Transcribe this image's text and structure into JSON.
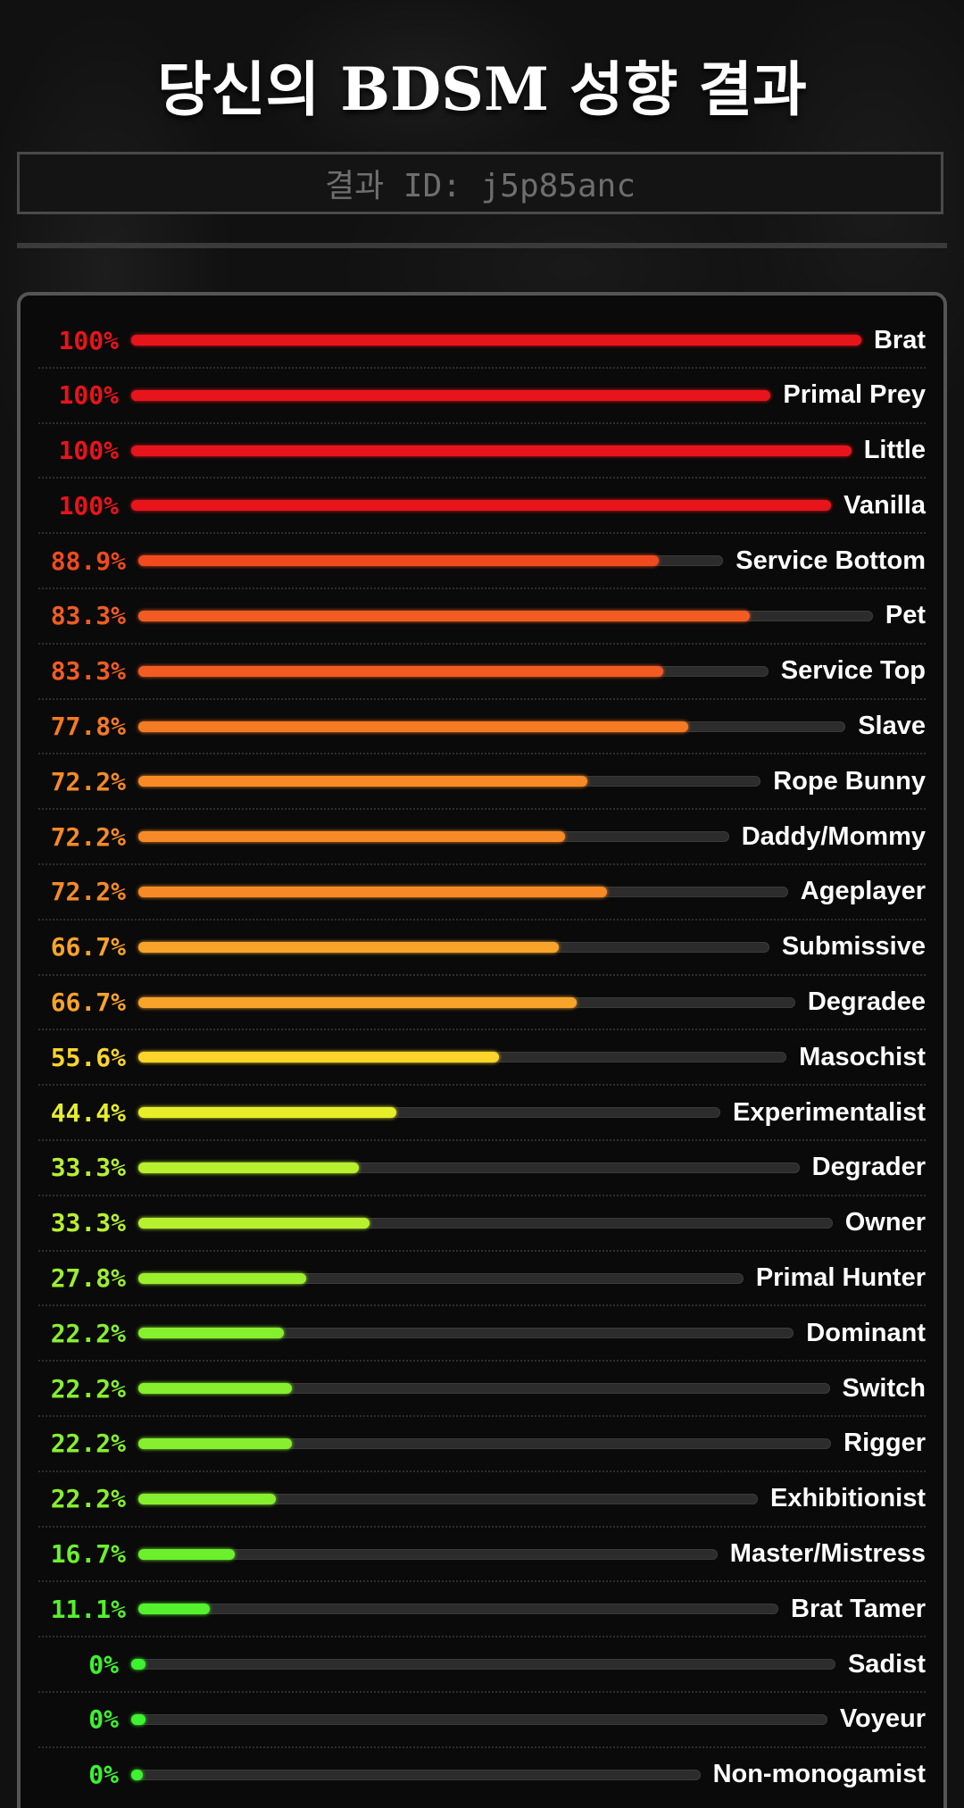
{
  "header": {
    "title": "당신의 BDSM 성향 결과",
    "result_id": "결과 ID: j5p85anc"
  },
  "results": [
    {
      "label": "Brat",
      "percent_text": "100%",
      "percent": 100,
      "color": "#e8141b"
    },
    {
      "label": "Primal Prey",
      "percent_text": "100%",
      "percent": 100,
      "color": "#e8141b"
    },
    {
      "label": "Little",
      "percent_text": "100%",
      "percent": 100,
      "color": "#e8141b"
    },
    {
      "label": "Vanilla",
      "percent_text": "100%",
      "percent": 100,
      "color": "#e8141b"
    },
    {
      "label": "Service Bottom",
      "percent_text": "88.9%",
      "percent": 88.9,
      "color": "#f04a1e"
    },
    {
      "label": "Pet",
      "percent_text": "83.3%",
      "percent": 83.3,
      "color": "#f25c22"
    },
    {
      "label": "Service Top",
      "percent_text": "83.3%",
      "percent": 83.3,
      "color": "#f25c22"
    },
    {
      "label": "Slave",
      "percent_text": "77.8%",
      "percent": 77.8,
      "color": "#f57a24"
    },
    {
      "label": "Rope Bunny",
      "percent_text": "72.2%",
      "percent": 72.2,
      "color": "#f78a26"
    },
    {
      "label": "Daddy/Mommy",
      "percent_text": "72.2%",
      "percent": 72.2,
      "color": "#f78a26"
    },
    {
      "label": "Ageplayer",
      "percent_text": "72.2%",
      "percent": 72.2,
      "color": "#f78a26"
    },
    {
      "label": "Submissive",
      "percent_text": "66.7%",
      "percent": 66.7,
      "color": "#f8a32a"
    },
    {
      "label": "Degradee",
      "percent_text": "66.7%",
      "percent": 66.7,
      "color": "#f8a32a"
    },
    {
      "label": "Masochist",
      "percent_text": "55.6%",
      "percent": 55.6,
      "color": "#fbd52a"
    },
    {
      "label": "Experimentalist",
      "percent_text": "44.4%",
      "percent": 44.4,
      "color": "#e6ee2a"
    },
    {
      "label": "Degrader",
      "percent_text": "33.3%",
      "percent": 33.3,
      "color": "#b8f02e"
    },
    {
      "label": "Owner",
      "percent_text": "33.3%",
      "percent": 33.3,
      "color": "#b8f02e"
    },
    {
      "label": "Primal Hunter",
      "percent_text": "27.8%",
      "percent": 27.8,
      "color": "#9cef2e"
    },
    {
      "label": "Dominant",
      "percent_text": "22.2%",
      "percent": 22.2,
      "color": "#86ef2e"
    },
    {
      "label": "Switch",
      "percent_text": "22.2%",
      "percent": 22.2,
      "color": "#86ef2e"
    },
    {
      "label": "Rigger",
      "percent_text": "22.2%",
      "percent": 22.2,
      "color": "#86ef2e"
    },
    {
      "label": "Exhibitionist",
      "percent_text": "22.2%",
      "percent": 22.2,
      "color": "#86ef2e"
    },
    {
      "label": "Master/Mistress",
      "percent_text": "16.7%",
      "percent": 16.7,
      "color": "#6cf02e"
    },
    {
      "label": "Brat Tamer",
      "percent_text": "11.1%",
      "percent": 11.1,
      "color": "#55f02e"
    },
    {
      "label": "Sadist",
      "percent_text": "0%",
      "percent": 0,
      "color": "#3df22e"
    },
    {
      "label": "Voyeur",
      "percent_text": "0%",
      "percent": 0,
      "color": "#3df22e"
    },
    {
      "label": "Non-monogamist",
      "percent_text": "0%",
      "percent": 0,
      "color": "#3df22e"
    }
  ]
}
